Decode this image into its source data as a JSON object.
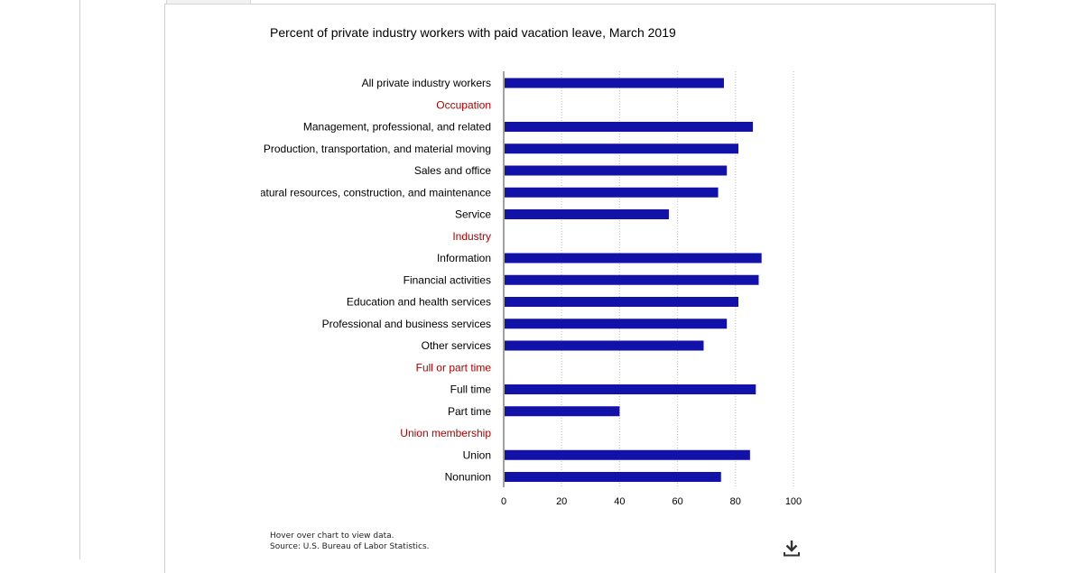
{
  "notes": {
    "hover": "Hover over chart to view data.",
    "source": "Source: U.S. Bureau of Labor Statistics."
  },
  "icons": {
    "download": "download-icon"
  },
  "colors": {
    "bar": "#1212a8",
    "heading": "#b30000",
    "grid": "#bbbbbb"
  },
  "chart_data": {
    "type": "bar",
    "orientation": "horizontal",
    "title": "Percent of private industry workers with paid vacation leave, March 2019",
    "xlabel": "",
    "ylabel": "",
    "xlim": [
      0,
      100
    ],
    "xticks": [
      0,
      20,
      40,
      60,
      80,
      100
    ],
    "grid": true,
    "categories": [
      {
        "label": "All private industry workers",
        "value": 76,
        "heading": false
      },
      {
        "label": "Occupation",
        "value": null,
        "heading": true
      },
      {
        "label": "Management, professional, and related",
        "value": 86,
        "heading": false
      },
      {
        "label": "Production, transportation, and material moving",
        "value": 81,
        "heading": false
      },
      {
        "label": "Sales and office",
        "value": 77,
        "heading": false
      },
      {
        "label": "Natural resources, construction, and maintenance",
        "value": 74,
        "heading": false
      },
      {
        "label": "Service",
        "value": 57,
        "heading": false
      },
      {
        "label": "Industry",
        "value": null,
        "heading": true
      },
      {
        "label": "Information",
        "value": 89,
        "heading": false
      },
      {
        "label": "Financial activities",
        "value": 88,
        "heading": false
      },
      {
        "label": "Education and health services",
        "value": 81,
        "heading": false
      },
      {
        "label": "Professional and business services",
        "value": 77,
        "heading": false
      },
      {
        "label": "Other services",
        "value": 69,
        "heading": false
      },
      {
        "label": "Full or part time",
        "value": null,
        "heading": true
      },
      {
        "label": "Full time",
        "value": 87,
        "heading": false
      },
      {
        "label": "Part time",
        "value": 40,
        "heading": false
      },
      {
        "label": "Union membership",
        "value": null,
        "heading": true
      },
      {
        "label": "Union",
        "value": 85,
        "heading": false
      },
      {
        "label": "Nonunion",
        "value": 75,
        "heading": false
      }
    ]
  }
}
